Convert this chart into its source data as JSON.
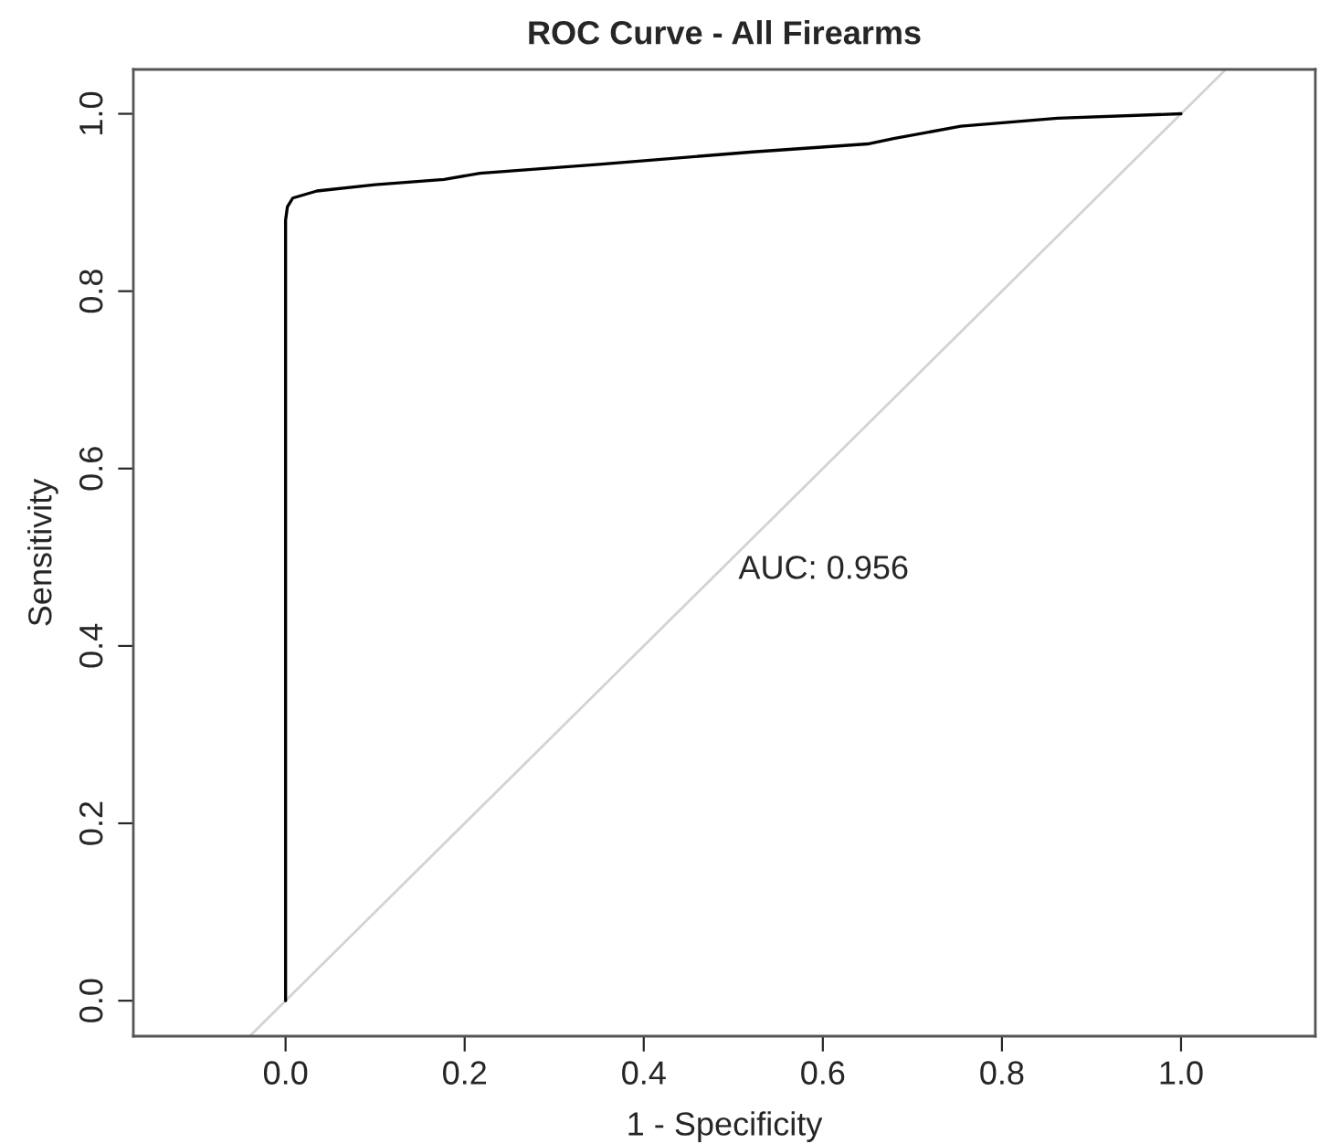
{
  "chart_data": {
    "type": "line",
    "title": "ROC Curve - All Firearms",
    "xlabel": "1 - Specificity",
    "ylabel": "Sensitivity",
    "series": [
      {
        "color": "#d3d3d3",
        "x": [
          -0.04,
          1.05
        ],
        "values": [
          -0.04,
          1.05
        ]
      },
      {
        "color": "#000000",
        "x": [
          0.0,
          0.0,
          0.002,
          0.008,
          0.035,
          0.1,
          0.177,
          0.217,
          0.35,
          0.522,
          0.65,
          0.679,
          0.754,
          0.862,
          1.0
        ],
        "values": [
          0.0,
          0.88,
          0.895,
          0.905,
          0.913,
          0.92,
          0.926,
          0.933,
          0.943,
          0.957,
          0.966,
          0.972,
          0.986,
          0.995,
          1.0
        ]
      }
    ],
    "annotations": [
      "AUC: 0.956"
    ],
    "xlim": [
      -0.17,
      1.15
    ],
    "ylim": [
      -0.04,
      1.05
    ],
    "xticks": [
      {
        "value": 0.0,
        "label": "0.0"
      },
      0.2,
      0.4,
      0.6,
      0.8,
      {
        "value": 1.0,
        "label": "1.0"
      }
    ],
    "yticks": [
      {
        "value": 0.0,
        "label": "0.0"
      },
      0.2,
      0.4,
      0.6,
      0.8,
      {
        "value": 1.0,
        "label": "1.0"
      }
    ],
    "grid": false,
    "line_style": "solid",
    "marker": "none"
  }
}
